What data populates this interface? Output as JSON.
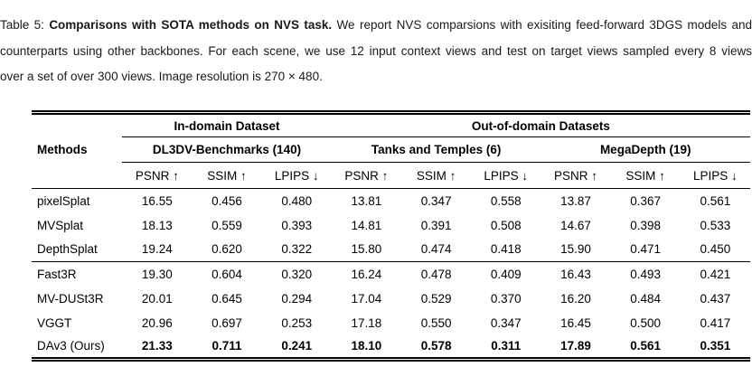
{
  "caption": {
    "line1_prefix": "Table 5: ",
    "line1_bold": "Comparisons with SOTA methods on NVS task.",
    "line1_rest": " We report NVS comparsions with exisiting feed-forward 3DGS models and",
    "line2": "counterparts using other backbones. For each scene, we use 12 input context views and test on target views sampled every 8 views",
    "line3": "over a set of over 300 views. Image resolution is 270 × 480."
  },
  "table": {
    "group_headers": {
      "in_domain": "In-domain Dataset",
      "out_of_domain": "Out-of-domain Datasets"
    },
    "methods_label": "Methods",
    "datasets": [
      "DL3DV-Benchmarks (140)",
      "Tanks and Temples (6)",
      "MegaDepth (19)"
    ],
    "metrics": [
      "PSNR ↑",
      "SSIM ↑",
      "LPIPS ↓"
    ],
    "rows": [
      {
        "method": "pixelSplat",
        "values": [
          "16.55",
          "0.456",
          "0.480",
          "13.81",
          "0.347",
          "0.558",
          "13.87",
          "0.367",
          "0.561"
        ]
      },
      {
        "method": "MVSplat",
        "values": [
          "18.13",
          "0.559",
          "0.393",
          "14.81",
          "0.391",
          "0.508",
          "14.67",
          "0.398",
          "0.533"
        ]
      },
      {
        "method": "DepthSplat",
        "values": [
          "19.24",
          "0.620",
          "0.322",
          "15.80",
          "0.474",
          "0.418",
          "15.90",
          "0.471",
          "0.450"
        ]
      },
      {
        "method": "Fast3R",
        "values": [
          "19.30",
          "0.604",
          "0.320",
          "16.24",
          "0.478",
          "0.409",
          "16.43",
          "0.493",
          "0.421"
        ]
      },
      {
        "method": "MV-DUSt3R",
        "values": [
          "20.01",
          "0.645",
          "0.294",
          "17.04",
          "0.529",
          "0.370",
          "16.20",
          "0.484",
          "0.437"
        ]
      },
      {
        "method": "VGGT",
        "values": [
          "20.96",
          "0.697",
          "0.253",
          "17.18",
          "0.550",
          "0.347",
          "16.45",
          "0.500",
          "0.417"
        ]
      },
      {
        "method": "DAv3 (Ours)",
        "values": [
          "21.33",
          "0.711",
          "0.241",
          "18.10",
          "0.578",
          "0.311",
          "17.89",
          "0.561",
          "0.351"
        ]
      }
    ]
  },
  "colors": {
    "text": "#141414",
    "background": "#ffffff"
  }
}
